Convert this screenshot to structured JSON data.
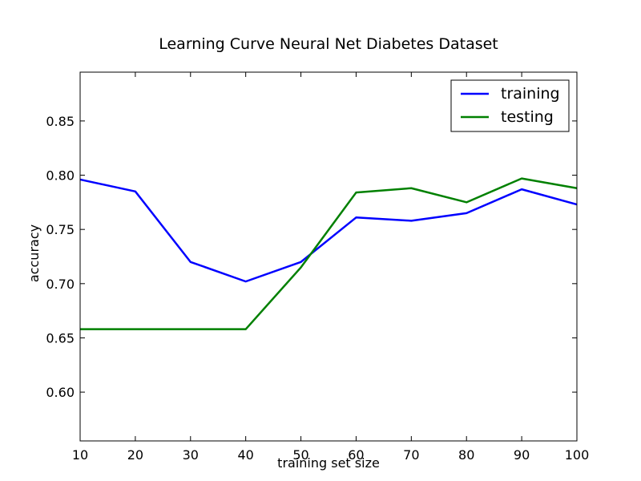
{
  "chart_data": {
    "type": "line",
    "title": "Learning Curve Neural Net Diabetes Dataset",
    "xlabel": "training set size",
    "ylabel": "accuracy",
    "x": [
      10,
      20,
      30,
      40,
      50,
      60,
      70,
      80,
      90,
      100
    ],
    "xlim": [
      10,
      100
    ],
    "ylim": [
      0.555,
      0.895
    ],
    "xticks": [
      10,
      20,
      30,
      40,
      50,
      60,
      70,
      80,
      90,
      100
    ],
    "xtick_labels": [
      "10",
      "20",
      "30",
      "40",
      "50",
      "60",
      "70",
      "80",
      "90",
      "100"
    ],
    "yticks": [
      0.6,
      0.65,
      0.7,
      0.75,
      0.8,
      0.85
    ],
    "ytick_labels": [
      "0.60",
      "0.65",
      "0.70",
      "0.75",
      "0.80",
      "0.85"
    ],
    "grid": false,
    "legend_position": "top-right",
    "series": [
      {
        "name": "training",
        "color": "#0000ff",
        "values": [
          0.796,
          0.785,
          0.72,
          0.702,
          0.72,
          0.761,
          0.758,
          0.765,
          0.787,
          0.773
        ]
      },
      {
        "name": "testing",
        "color": "#008000",
        "values": [
          0.658,
          0.658,
          0.658,
          0.658,
          0.715,
          0.784,
          0.788,
          0.775,
          0.797,
          0.788
        ]
      }
    ]
  }
}
